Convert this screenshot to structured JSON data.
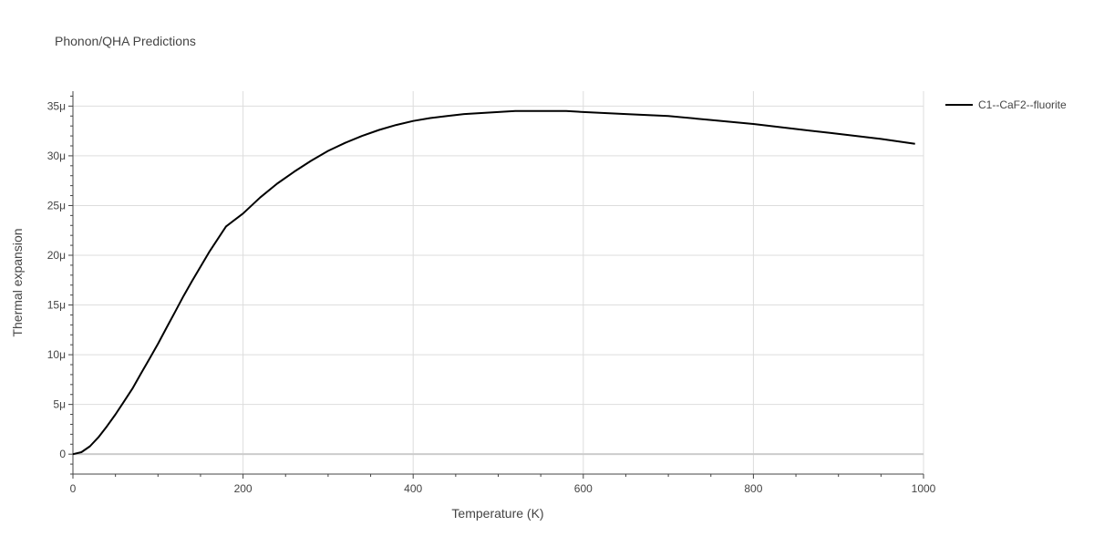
{
  "chart_data": {
    "type": "line",
    "title": "Phonon/QHA Predictions",
    "xlabel": "Temperature (K)",
    "ylabel": "Thermal expansion",
    "xlim": [
      0,
      1000
    ],
    "ylim": [
      -2e-06,
      3.65e-05
    ],
    "x_ticks": [
      0,
      200,
      400,
      600,
      800,
      1000
    ],
    "x_tick_labels": [
      "0",
      "200",
      "400",
      "600",
      "800",
      "1000"
    ],
    "y_ticks": [
      0,
      5e-06,
      1e-05,
      1.5e-05,
      2e-05,
      2.5e-05,
      3e-05,
      3.5e-05
    ],
    "y_tick_labels": [
      "0",
      "5μ",
      "10μ",
      "15μ",
      "20μ",
      "25μ",
      "30μ",
      "35μ"
    ],
    "grid": true,
    "legend_position": "top-right, outside plot",
    "series": [
      {
        "name": "C1--CaF2--fluorite",
        "color": "#000000",
        "x": [
          0,
          10,
          20,
          30,
          40,
          50,
          60,
          70,
          80,
          90,
          100,
          110,
          120,
          130,
          140,
          160,
          180,
          200,
          220,
          240,
          260,
          280,
          300,
          320,
          340,
          360,
          380,
          400,
          420,
          440,
          460,
          500,
          520,
          560,
          580,
          600,
          650,
          700,
          750,
          800,
          850,
          890,
          950,
          990
        ],
        "y": [
          0,
          2e-07,
          8e-07,
          1.7e-06,
          2.8e-06,
          4e-06,
          5.3e-06,
          6.6e-06,
          8.1e-06,
          9.6e-06,
          1.11e-05,
          1.27e-05,
          1.43e-05,
          1.59e-05,
          1.74e-05,
          2.03e-05,
          2.29e-05,
          2.42e-05,
          2.58e-05,
          2.72e-05,
          2.84e-05,
          2.95e-05,
          3.05e-05,
          3.13e-05,
          3.2e-05,
          3.26e-05,
          3.31e-05,
          3.35e-05,
          3.38e-05,
          3.4e-05,
          3.42e-05,
          3.44e-05,
          3.45e-05,
          3.45e-05,
          3.45e-05,
          3.44e-05,
          3.42e-05,
          3.4e-05,
          3.36e-05,
          3.32e-05,
          3.27e-05,
          3.23e-05,
          3.17e-05,
          3.12e-05
        ]
      }
    ]
  }
}
